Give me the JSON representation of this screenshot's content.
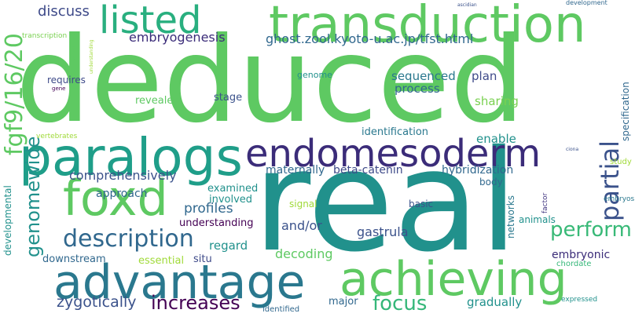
{
  "words": [
    {
      "text": "deduced",
      "color": "#5ec962"
    },
    {
      "text": "real",
      "color": "#21918c"
    },
    {
      "text": "transduction",
      "color": "#5ec962"
    },
    {
      "text": "paralogs",
      "color": "#1f9e89"
    },
    {
      "text": "endomesoderm",
      "color": "#3b2c79"
    },
    {
      "text": "advantage",
      "color": "#2a788e"
    },
    {
      "text": "achieving",
      "color": "#5ec962"
    },
    {
      "text": "foxd",
      "color": "#5ec962"
    },
    {
      "text": "listed",
      "color": "#29af7f"
    },
    {
      "text": "fgf9/16/20",
      "color": "#5ec962"
    },
    {
      "text": "description",
      "color": "#31688e"
    },
    {
      "text": "partial",
      "color": "#3b528b"
    },
    {
      "text": "perform",
      "color": "#38b977"
    },
    {
      "text": "increases",
      "color": "#440154"
    },
    {
      "text": "focus",
      "color": "#35b779"
    },
    {
      "text": "genomewide",
      "color": "#21918c"
    },
    {
      "text": "zygotically",
      "color": "#3b528b"
    },
    {
      "text": "discuss",
      "color": "#3e4a89"
    },
    {
      "text": "embryogenesis",
      "color": "#3b2c79"
    },
    {
      "text": "ghost.zool.kyoto-u.ac.jp/tfst.html",
      "color": "#31688e"
    },
    {
      "text": "comprehensively",
      "color": "#3b528b"
    },
    {
      "text": "sequenced",
      "color": "#2a788e"
    },
    {
      "text": "process",
      "color": "#31688e"
    },
    {
      "text": "plan",
      "color": "#3e4a89"
    },
    {
      "text": "sharing",
      "color": "#7ad151"
    },
    {
      "text": "enable",
      "color": "#21918c"
    },
    {
      "text": "identification",
      "color": "#2a788e"
    },
    {
      "text": "maternally",
      "color": "#31688e"
    },
    {
      "text": "beta-catenin",
      "color": "#3e4a89"
    },
    {
      "text": "hybridization",
      "color": "#31688e"
    },
    {
      "text": "approach",
      "color": "#31688e"
    },
    {
      "text": "profiles",
      "color": "#31688e"
    },
    {
      "text": "examined",
      "color": "#21918c"
    },
    {
      "text": "involved",
      "color": "#21918c"
    },
    {
      "text": "understanding",
      "color": "#440154"
    },
    {
      "text": "regard",
      "color": "#21918c"
    },
    {
      "text": "and/or",
      "color": "#3b528b"
    },
    {
      "text": "gastrula",
      "color": "#3b528b"
    },
    {
      "text": "decoding",
      "color": "#5ec962"
    },
    {
      "text": "situ",
      "color": "#3e4a89"
    },
    {
      "text": "downstream",
      "color": "#31688e"
    },
    {
      "text": "essential",
      "color": "#a0da39"
    },
    {
      "text": "major",
      "color": "#31688e"
    },
    {
      "text": "gradually",
      "color": "#21918c"
    },
    {
      "text": "embryonic",
      "color": "#3b2c79"
    },
    {
      "text": "animals",
      "color": "#21918c"
    },
    {
      "text": "chordate",
      "color": "#35b779"
    },
    {
      "text": "expressed",
      "color": "#21918c"
    },
    {
      "text": "identified",
      "color": "#31688e"
    },
    {
      "text": "basic",
      "color": "#3b528b"
    },
    {
      "text": "signal",
      "color": "#a0da39"
    },
    {
      "text": "body",
      "color": "#31688e"
    },
    {
      "text": "networks",
      "color": "#2a788e"
    },
    {
      "text": "factor",
      "color": "#443983"
    },
    {
      "text": "stage",
      "color": "#3b528b"
    },
    {
      "text": "revealed",
      "color": "#5ec962"
    },
    {
      "text": "requires",
      "color": "#3e4a89"
    },
    {
      "text": "genome",
      "color": "#21918c"
    },
    {
      "text": "transcription",
      "color": "#7ad151"
    },
    {
      "text": "vertebrates",
      "color": "#a0da39"
    },
    {
      "text": "gene",
      "color": "#440154"
    },
    {
      "text": "embryos",
      "color": "#2a788e"
    },
    {
      "text": "study",
      "color": "#a0da39"
    },
    {
      "text": "specification",
      "color": "#31688e"
    },
    {
      "text": "ciona",
      "color": "#3b528b"
    },
    {
      "text": "development",
      "color": "#31688e"
    },
    {
      "text": "ascidian",
      "color": "#3b528b"
    },
    {
      "text": "developmental",
      "color": "#21918c"
    },
    {
      "text": "vertebrates",
      "color": "#5ec962"
    },
    {
      "text": "understanding",
      "color": "#a0da39"
    }
  ]
}
